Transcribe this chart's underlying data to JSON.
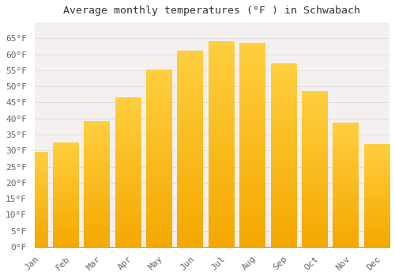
{
  "title": "Average monthly temperatures (°F ) in Schwabach",
  "months": [
    "Jan",
    "Feb",
    "Mar",
    "Apr",
    "May",
    "Jun",
    "Jul",
    "Aug",
    "Sep",
    "Oct",
    "Nov",
    "Dec"
  ],
  "values": [
    29.5,
    32.5,
    39.0,
    46.5,
    55.0,
    61.0,
    64.0,
    63.5,
    57.0,
    48.5,
    38.5,
    32.0
  ],
  "bar_color_top": "#FFC125",
  "bar_color_bottom": "#F5A623",
  "background_color": "#FFFFFF",
  "plot_bg_color": "#F5F0F0",
  "grid_color": "#DDDDDD",
  "title_fontsize": 9.5,
  "tick_label_fontsize": 8,
  "ylim": [
    0,
    70
  ],
  "yticks": [
    0,
    5,
    10,
    15,
    20,
    25,
    30,
    35,
    40,
    45,
    50,
    55,
    60,
    65
  ],
  "ylabel_suffix": "°F"
}
